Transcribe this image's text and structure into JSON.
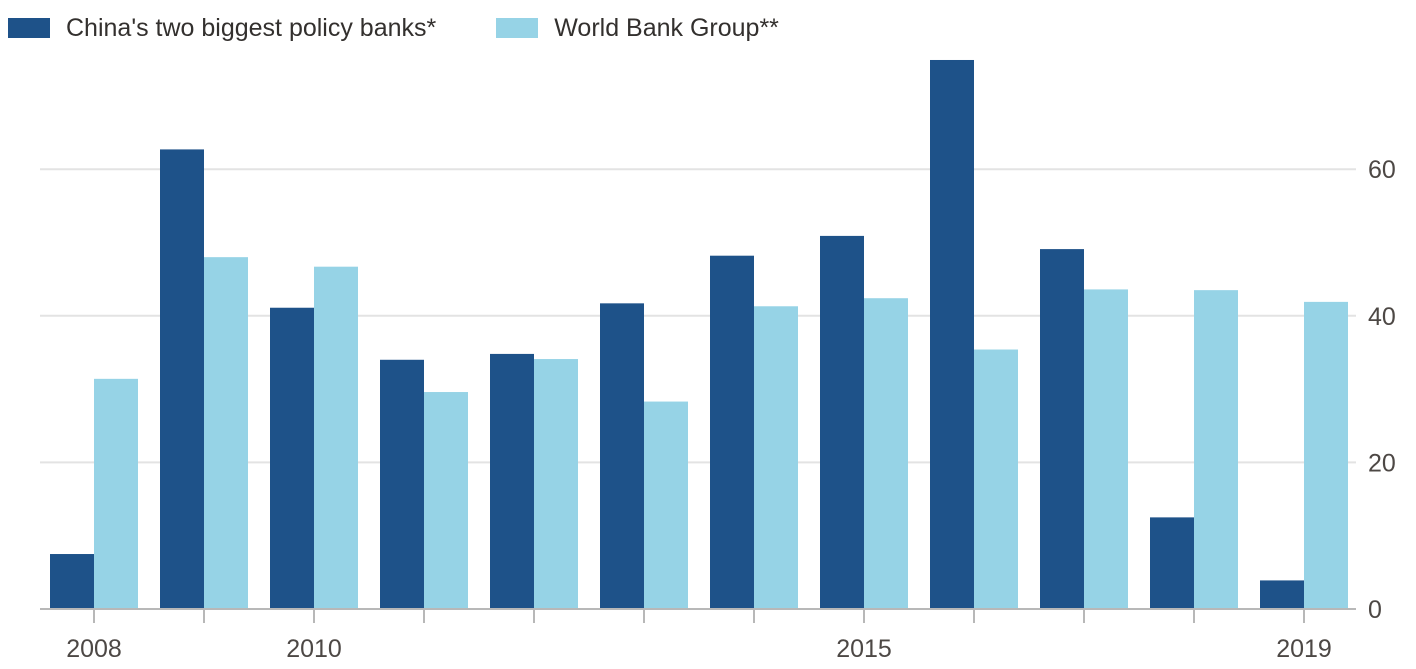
{
  "colors": {
    "china": "#1e5289",
    "world_bank": "#96d3e6",
    "grid": "#e3e3e3",
    "axis": "#b8b8b8",
    "text": "#4d4845"
  },
  "chart_data": {
    "type": "bar",
    "title": "",
    "xlabel": "",
    "ylabel": "",
    "grid": true,
    "legend_position": "top-left",
    "y_axis_side": "right",
    "ylim": [
      0,
      75
    ],
    "yticks": [
      0,
      20,
      40,
      60
    ],
    "categories": [
      "2008",
      "2009",
      "2010",
      "2011",
      "2012",
      "2013",
      "2014",
      "2015",
      "2016",
      "2017",
      "2018",
      "2019"
    ],
    "xtick_labels": [
      "2008",
      "",
      "2010",
      "",
      "",
      "",
      "",
      "2015",
      "",
      "",
      "",
      "2019"
    ],
    "series": [
      {
        "name": "China's two biggest policy banks*",
        "color": "#1e5289",
        "values": [
          7.5,
          62.7,
          41.1,
          34.0,
          34.8,
          41.7,
          48.2,
          50.9,
          74.9,
          49.1,
          12.5,
          3.9
        ]
      },
      {
        "name": "World Bank Group**",
        "color": "#96d3e6",
        "values": [
          31.4,
          48.0,
          46.7,
          29.6,
          34.1,
          28.3,
          41.3,
          42.4,
          35.4,
          43.6,
          43.5,
          41.9
        ]
      }
    ]
  }
}
